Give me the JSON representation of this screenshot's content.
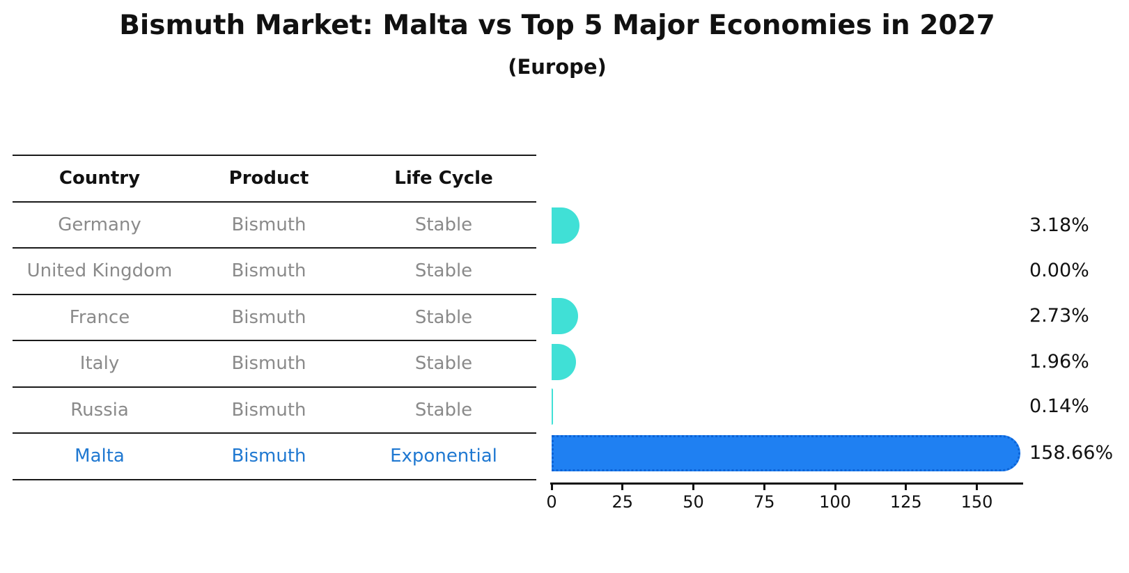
{
  "title": "Bismuth Market: Malta vs Top 5 Major Economies in 2027",
  "subtitle": "(Europe)",
  "table": {
    "columns": [
      "Country",
      "Product",
      "Life Cycle"
    ],
    "rows": [
      {
        "country": "Germany",
        "product": "Bismuth",
        "life_cycle": "Stable",
        "highlighted": false
      },
      {
        "country": "United Kingdom",
        "product": "Bismuth",
        "life_cycle": "Stable",
        "highlighted": false
      },
      {
        "country": "France",
        "product": "Bismuth",
        "life_cycle": "Stable",
        "highlighted": false
      },
      {
        "country": "Italy",
        "product": "Bismuth",
        "life_cycle": "Stable",
        "highlighted": false
      },
      {
        "country": "Russia",
        "product": "Bismuth",
        "life_cycle": "Stable",
        "highlighted": false
      },
      {
        "country": "Malta",
        "product": "Bismuth",
        "life_cycle": "Exponential",
        "highlighted": true
      }
    ]
  },
  "chart_data": {
    "type": "bar",
    "orientation": "horizontal",
    "categories": [
      "Germany",
      "United Kingdom",
      "France",
      "Italy",
      "Russia",
      "Malta"
    ],
    "values": [
      3.18,
      0.0,
      2.73,
      1.96,
      0.14,
      158.66
    ],
    "value_labels": [
      "3.18%",
      "0.00%",
      "2.73%",
      "1.96%",
      "0.14%",
      "158.66%"
    ],
    "title": "Bismuth Market: Malta vs Top 5 Major Economies in 2027",
    "subtitle": "(Europe)",
    "xlabel": "",
    "ylabel": "",
    "xticks": [
      0,
      25,
      50,
      75,
      100,
      125,
      150
    ],
    "xlim": [
      0,
      167
    ],
    "grid": false,
    "legend": false,
    "bar_colors": [
      "#40E0D6",
      "#40E0D6",
      "#40E0D6",
      "#40E0D6",
      "#40E0D6",
      "#1F80F2"
    ],
    "highlight_series": "Malta"
  },
  "colors": {
    "teal": "#40E0D6",
    "malta_bar": "#1F80F2",
    "malta_bar_dots": "#0C63D6",
    "malta_text": "#1F78D1",
    "row_text": "#8A8A8A",
    "heading_text": "#111111",
    "axis": "#111111",
    "background": "#FFFFFF"
  }
}
